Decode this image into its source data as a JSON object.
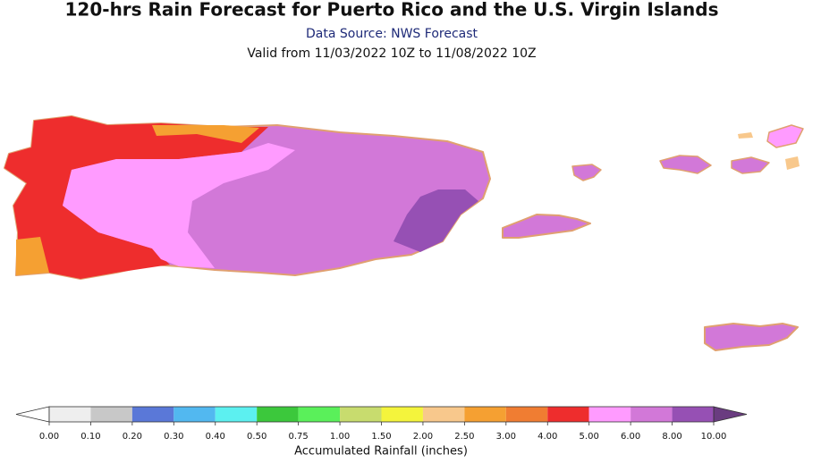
{
  "header": {
    "title": "120-hrs Rain Forecast for Puerto Rico and the U.S. Virgin Islands",
    "source": "Data Source: NWS Forecast",
    "valid": "Valid from 11/03/2022 10Z to 11/08/2022 10Z"
  },
  "colorbar": {
    "label": "Accumulated Rainfall (inches)",
    "levels": [
      {
        "value": 0,
        "label": "0.00"
      },
      {
        "value": 0.1,
        "label": "0.10"
      },
      {
        "value": 0.2,
        "label": "0.20"
      },
      {
        "value": 0.3,
        "label": "0.30"
      },
      {
        "value": 0.4,
        "label": "0.40"
      },
      {
        "value": 0.5,
        "label": "0.50"
      },
      {
        "value": 0.75,
        "label": "0.75"
      },
      {
        "value": 1,
        "label": "1.00"
      },
      {
        "value": 1.5,
        "label": "1.50"
      },
      {
        "value": 2,
        "label": "2.00"
      },
      {
        "value": 2.5,
        "label": "2.50"
      },
      {
        "value": 3,
        "label": "3.00"
      },
      {
        "value": 4,
        "label": "4.00"
      },
      {
        "value": 5,
        "label": "5.00"
      },
      {
        "value": 6,
        "label": "6.00"
      },
      {
        "value": 8,
        "label": "8.00"
      },
      {
        "value": 10,
        "label": "10.00"
      }
    ],
    "colors": [
      "#eeeeee",
      "#c8c8c8",
      "#5a78d8",
      "#52b8f0",
      "#5cf0f0",
      "#3cc83c",
      "#5af05a",
      "#c8dc6e",
      "#f4f43c",
      "#f8c88c",
      "#f5a032",
      "#f07d32",
      "#ee2d2d",
      "#ff9bff",
      "#d278d8",
      "#9650b4"
    ],
    "under_color": "#ffffff",
    "over_color": "#6a3c80"
  }
}
